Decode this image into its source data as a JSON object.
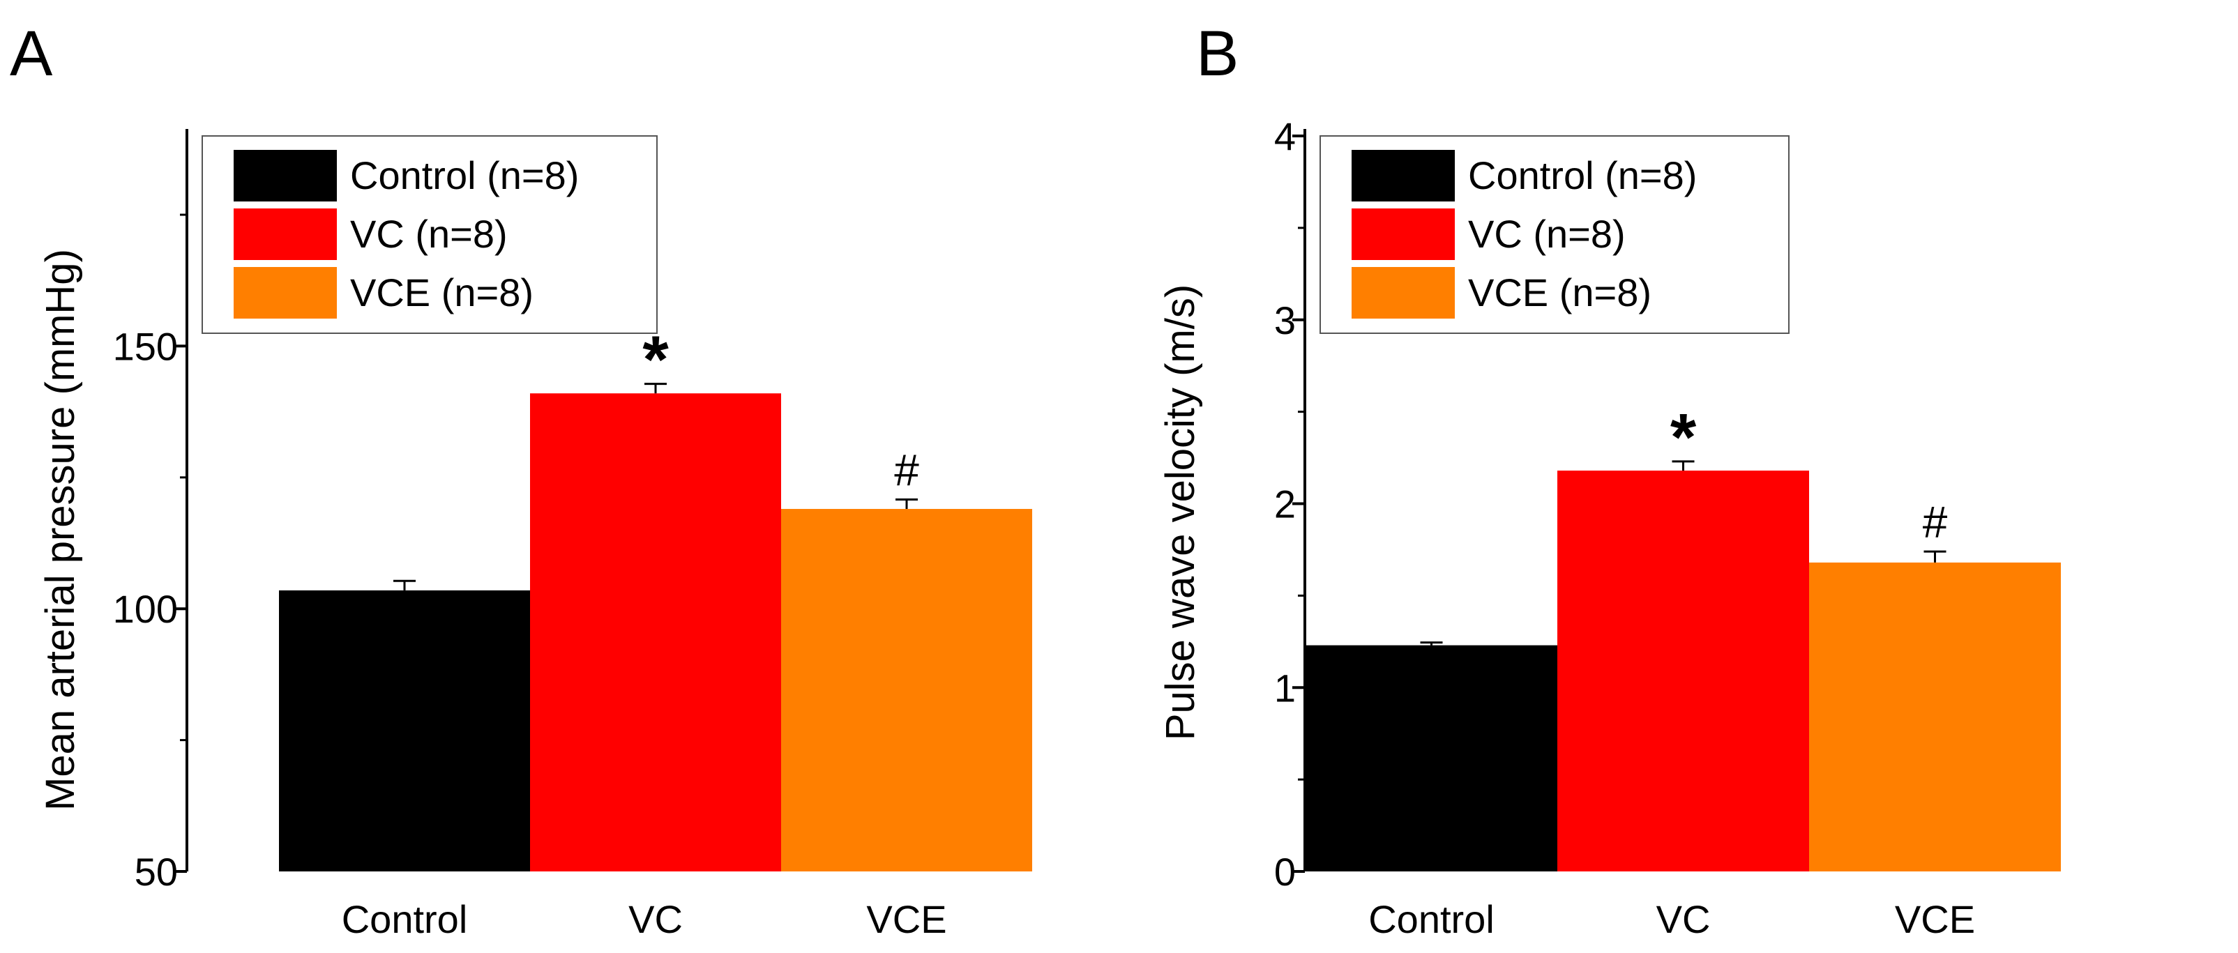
{
  "chart_data": [
    {
      "panel": "A",
      "type": "bar",
      "title": "",
      "xlabel": "",
      "ylabel": "Mean arterial pressure (mmHg)",
      "ylim": [
        50,
        190
      ],
      "yticks": [
        50,
        100,
        150
      ],
      "categories": [
        "Control",
        "VC",
        "VCE"
      ],
      "values": [
        103.5,
        141,
        119
      ],
      "errors": [
        1.8,
        1.8,
        1.8
      ],
      "colors": [
        "#000000",
        "#ff0000",
        "#ff7f00"
      ],
      "annotations": [
        "",
        "*",
        "#"
      ],
      "legend": {
        "position": "top-left",
        "entries": [
          "Control (n=8)",
          "VC (n=8)",
          "VCE (n=8)"
        ]
      },
      "grid": false
    },
    {
      "panel": "B",
      "type": "bar",
      "title": "",
      "xlabel": "",
      "ylabel": "Pulse wave velocity (m/s)",
      "ylim": [
        0,
        4
      ],
      "yticks": [
        0,
        1,
        2,
        3,
        4
      ],
      "categories": [
        "Control",
        "VC",
        "VCE"
      ],
      "values": [
        1.23,
        2.18,
        1.68
      ],
      "errors": [
        0.015,
        0.05,
        0.06
      ],
      "colors": [
        "#000000",
        "#ff0000",
        "#ff7f00"
      ],
      "annotations": [
        "",
        "*",
        "#"
      ],
      "legend": {
        "position": "top-left",
        "entries": [
          "Control (n=8)",
          "VC (n=8)",
          "VCE (n=8)"
        ]
      },
      "grid": false
    }
  ]
}
